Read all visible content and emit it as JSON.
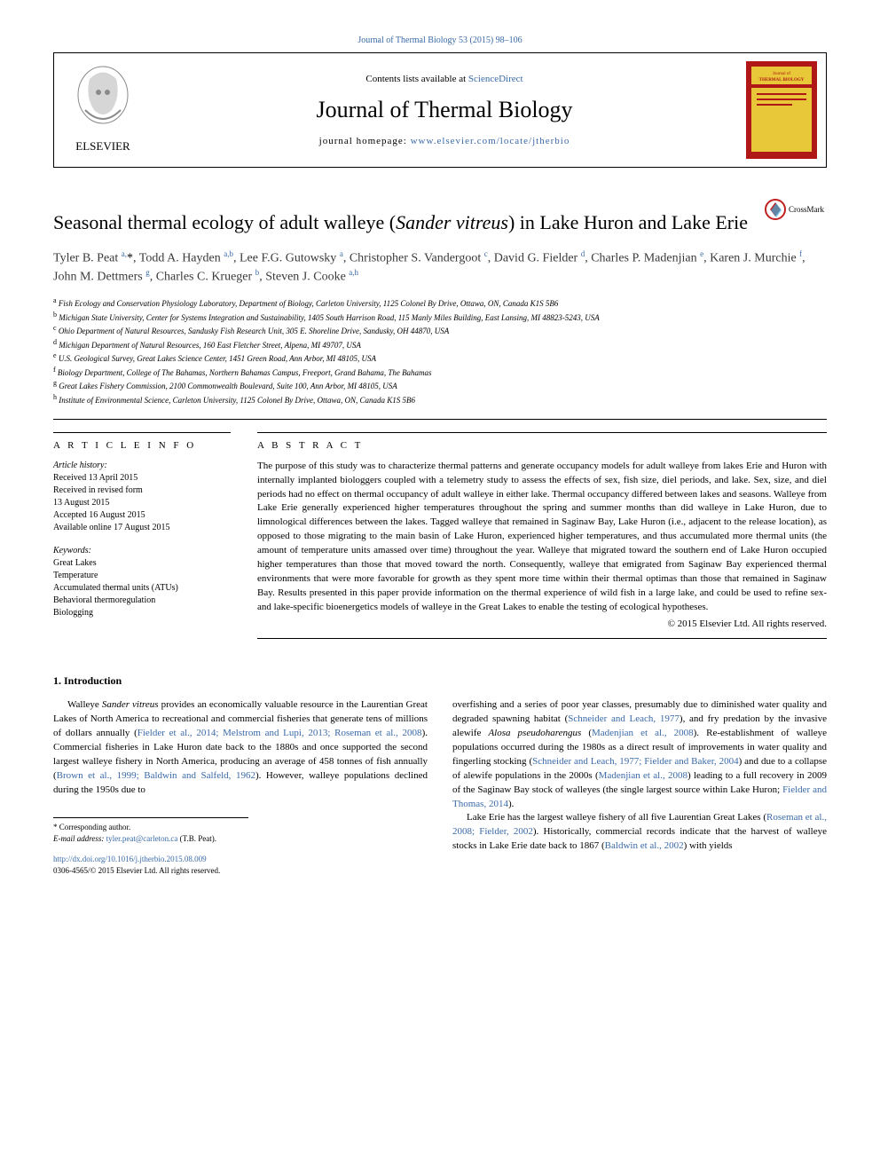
{
  "top_link_text": "Journal of Thermal Biology 53 (2015) 98–106",
  "header": {
    "contents_prefix": "Contents lists available at ",
    "contents_link": "ScienceDirect",
    "journal_name": "Journal of Thermal Biology",
    "homepage_prefix": "journal homepage: ",
    "homepage_link": "www.elsevier.com/locate/jtherbio",
    "elsevier_label": "ELSEVIER",
    "thermal_cover_label": "THERMAL BIOLOGY"
  },
  "title_parts": {
    "pre": "Seasonal thermal ecology of adult walleye (",
    "italic": "Sander vitreus",
    "post": ") in Lake Huron and Lake Erie"
  },
  "crossmark_label": "CrossMark",
  "authors_html": "Tyler B. Peat <sup>a,</sup><span class='ast'>*</span>, Todd A. Hayden <sup>a,b</sup>, Lee F.G. Gutowsky <sup>a</sup>, Christopher S. Vandergoot <sup>c</sup>, David G. Fielder <sup>d</sup>, Charles P. Madenjian <sup>e</sup>, Karen J. Murchie <sup>f</sup>, John M. Dettmers <sup>g</sup>, Charles C. Krueger <sup>b</sup>, Steven J. Cooke <sup>a,h</sup>",
  "affiliations": [
    {
      "sup": "a",
      "text": "Fish Ecology and Conservation Physiology Laboratory, Department of Biology, Carleton University, 1125 Colonel By Drive, Ottawa, ON, Canada K1S 5B6"
    },
    {
      "sup": "b",
      "text": "Michigan State University, Center for Systems Integration and Sustainability, 1405 South Harrison Road, 115 Manly Miles Building, East Lansing, MI 48823-5243, USA"
    },
    {
      "sup": "c",
      "text": "Ohio Department of Natural Resources, Sandusky Fish Research Unit, 305 E. Shoreline Drive, Sandusky, OH 44870, USA"
    },
    {
      "sup": "d",
      "text": "Michigan Department of Natural Resources, 160 East Fletcher Street, Alpena, MI 49707, USA"
    },
    {
      "sup": "e",
      "text": "U.S. Geological Survey, Great Lakes Science Center, 1451 Green Road, Ann Arbor, MI 48105, USA"
    },
    {
      "sup": "f",
      "text": "Biology Department, College of The Bahamas, Northern Bahamas Campus, Freeport, Grand Bahama, The Bahamas"
    },
    {
      "sup": "g",
      "text": "Great Lakes Fishery Commission, 2100 Commonwealth Boulevard, Suite 100, Ann Arbor, MI 48105, USA"
    },
    {
      "sup": "h",
      "text": "Institute of Environmental Science, Carleton University, 1125 Colonel By Drive, Ottawa, ON, Canada K1S 5B6"
    }
  ],
  "article_info": {
    "heading": "A R T I C L E  I N F O",
    "history_label": "Article history:",
    "history": [
      "Received 13 April 2015",
      "Received in revised form",
      "13 August 2015",
      "Accepted 16 August 2015",
      "Available online 17 August 2015"
    ],
    "keywords_label": "Keywords:",
    "keywords": [
      "Great Lakes",
      "Temperature",
      "Accumulated thermal units (ATUs)",
      "Behavioral thermoregulation",
      "Biologging"
    ]
  },
  "abstract": {
    "heading": "A B S T R A C T",
    "text": "The purpose of this study was to characterize thermal patterns and generate occupancy models for adult walleye from lakes Erie and Huron with internally implanted biologgers coupled with a telemetry study to assess the effects of sex, fish size, diel periods, and lake. Sex, size, and diel periods had no effect on thermal occupancy of adult walleye in either lake. Thermal occupancy differed between lakes and seasons. Walleye from Lake Erie generally experienced higher temperatures throughout the spring and summer months than did walleye in Lake Huron, due to limnological differences between the lakes. Tagged walleye that remained in Saginaw Bay, Lake Huron (i.e., adjacent to the release location), as opposed to those migrating to the main basin of Lake Huron, experienced higher temperatures, and thus accumulated more thermal units (the amount of temperature units amassed over time) throughout the year. Walleye that migrated toward the southern end of Lake Huron occupied higher temperatures than those that moved toward the north. Consequently, walleye that emigrated from Saginaw Bay experienced thermal environments that were more favorable for growth as they spent more time within their thermal optimas than those that remained in Saginaw Bay. Results presented in this paper provide information on the thermal experience of wild fish in a large lake, and could be used to refine sex- and lake-specific bioenergetics models of walleye in the Great Lakes to enable the testing of ecological hypotheses.",
    "copyright": "© 2015 Elsevier Ltd. All rights reserved."
  },
  "section1": {
    "heading": "1.  Introduction",
    "para1_pre": "Walleye ",
    "para1_species": "Sander vitreus",
    "para1_post": " provides an economically valuable resource in the Laurentian Great Lakes of North America to recreational and commercial fisheries that generate tens of millions of dollars annually (",
    "para1_refs": "Fielder et al., 2014; Melstrom and Lupi, 2013; Roseman et al., 2008",
    "para1_after_refs": "). Commercial fisheries in Lake Huron date back to the 1880s and once supported the second largest walleye fishery in North America, producing an average of 458 tonnes of fish annually (",
    "para1_refs2": "Brown et al., 1999; Baldwin and Salfeld, 1962",
    "para1_tail": "). However, walleye populations declined during the 1950s due to",
    "para2_pre": "overfishing and a series of poor year classes, presumably due to diminished water quality and degraded spawning habitat (",
    "para2_ref1": "Schneider and Leach, 1977",
    "para2_mid1": "), and fry predation by the invasive alewife ",
    "para2_species": "Alosa pseudoharengus",
    "para2_mid2": " (",
    "para2_ref2": "Madenjian et al., 2008",
    "para2_mid3": "). Re-establishment of walleye populations occurred during the 1980s as a direct result of improvements in water quality and fingerling stocking (",
    "para2_ref3": "Schneider and Leach, 1977; Fielder and Baker, 2004",
    "para2_mid4": ") and due to a collapse of alewife populations in the 2000s (",
    "para2_ref4": "Madenjian et al., 2008",
    "para2_mid5": ") leading to a full recovery in 2009 of the Saginaw Bay stock of walleyes (the single largest source within Lake Huron; ",
    "para2_ref5": "Fielder and Thomas, 2014",
    "para2_tail": ").",
    "para3_pre": "Lake Erie has the largest walleye fishery of all five Laurentian Great Lakes (",
    "para3_ref1": "Roseman et al., 2008; Fielder, 2002",
    "para3_mid": "). Historically, commercial records indicate that the harvest of walleye stocks in Lake Erie date back to 1867 (",
    "para3_ref2": "Baldwin et al., 2002",
    "para3_tail": ") with yields"
  },
  "footnote": {
    "corr": "* Corresponding author.",
    "email_label": "E-mail address: ",
    "email": "tyler.peat@carleton.ca",
    "email_suffix": " (T.B. Peat)."
  },
  "doi": {
    "link": "http://dx.doi.org/10.1016/j.jtherbio.2015.08.009",
    "issn": "0306-4565/© 2015 Elsevier Ltd. All rights reserved."
  },
  "colors": {
    "link": "#3a6aa8",
    "elsevier_orange": "#e87722",
    "thermal_red": "#b01818",
    "thermal_yellow": "#e8c838"
  }
}
